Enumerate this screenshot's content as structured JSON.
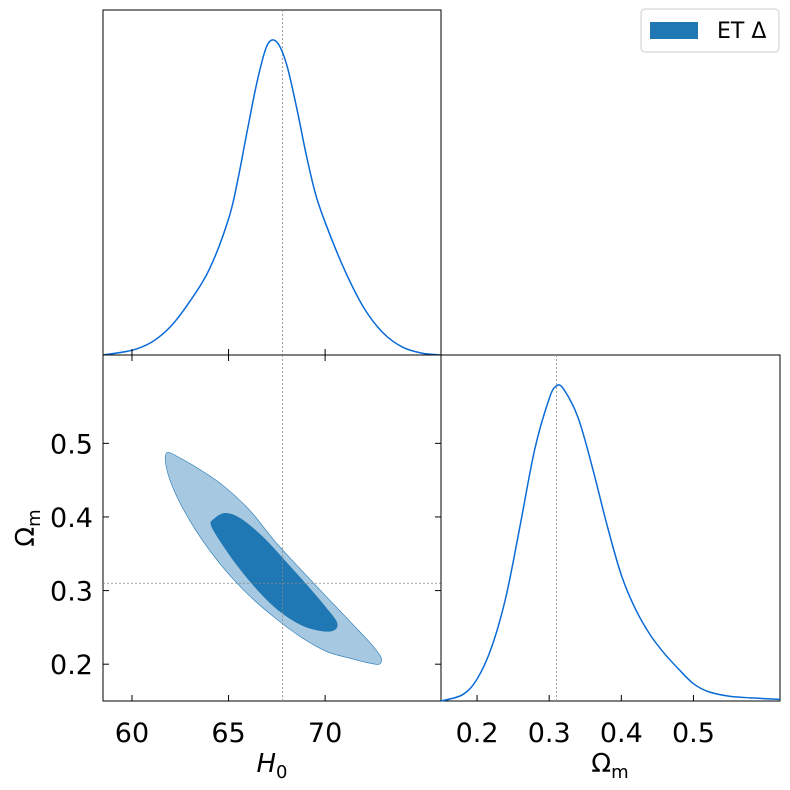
{
  "chart_data": [
    {
      "type": "line",
      "panel": "H0 marginal",
      "xlim": [
        58.5,
        76
      ],
      "x": [
        58.5,
        60,
        61,
        62,
        63,
        64,
        65,
        65.5,
        66,
        66.5,
        67,
        67.5,
        68,
        68.5,
        69,
        69.5,
        70,
        71,
        72,
        73,
        74,
        75,
        76
      ],
      "y": [
        0.0,
        0.015,
        0.04,
        0.09,
        0.17,
        0.27,
        0.43,
        0.56,
        0.72,
        0.87,
        0.98,
        0.99,
        0.92,
        0.79,
        0.64,
        0.51,
        0.42,
        0.27,
        0.15,
        0.07,
        0.025,
        0.006,
        0.0
      ],
      "reference_x": 67.8,
      "legend_label": "ET Δ"
    },
    {
      "type": "area",
      "panel": "H0 vs Omega_m contours",
      "xlabel": "H",
      "xlabel_sub": "0",
      "ylabel": "Ω",
      "ylabel_sub": "m",
      "xlim": [
        58.5,
        76
      ],
      "ylim": [
        0.15,
        0.62
      ],
      "xticks": [
        "60",
        "65",
        "70"
      ],
      "yticks": [
        "0.2",
        "0.3",
        "0.4",
        "0.5"
      ],
      "contours": [
        {
          "level": "95%",
          "color": "#a6c8e0",
          "points": [
            [
              61.8,
              0.487
            ],
            [
              62.5,
              0.48
            ],
            [
              63.6,
              0.463
            ],
            [
              64.8,
              0.441
            ],
            [
              66.1,
              0.409
            ],
            [
              67.4,
              0.367
            ],
            [
              68.8,
              0.327
            ],
            [
              70.2,
              0.288
            ],
            [
              71.4,
              0.255
            ],
            [
              72.4,
              0.227
            ],
            [
              72.9,
              0.209
            ],
            [
              72.8,
              0.2
            ],
            [
              72.2,
              0.202
            ],
            [
              71.3,
              0.208
            ],
            [
              70.1,
              0.217
            ],
            [
              68.8,
              0.236
            ],
            [
              67.4,
              0.263
            ],
            [
              66.0,
              0.295
            ],
            [
              64.6,
              0.335
            ],
            [
              63.3,
              0.382
            ],
            [
              62.3,
              0.429
            ],
            [
              61.8,
              0.465
            ]
          ]
        },
        {
          "level": "68%",
          "color": "#1f77b4",
          "points": [
            [
              64.2,
              0.396
            ],
            [
              64.8,
              0.405
            ],
            [
              65.6,
              0.398
            ],
            [
              66.8,
              0.372
            ],
            [
              68.0,
              0.338
            ],
            [
              69.2,
              0.303
            ],
            [
              70.1,
              0.275
            ],
            [
              70.6,
              0.257
            ],
            [
              70.5,
              0.247
            ],
            [
              69.9,
              0.245
            ],
            [
              68.8,
              0.253
            ],
            [
              67.6,
              0.273
            ],
            [
              66.5,
              0.301
            ],
            [
              65.4,
              0.336
            ],
            [
              64.5,
              0.37
            ],
            [
              64.1,
              0.389
            ]
          ]
        }
      ],
      "reference_x": 67.8,
      "reference_y": 0.31
    },
    {
      "type": "line",
      "panel": "Omega_m marginal",
      "xlabel": "Ω",
      "xlabel_sub": "m",
      "xlim": [
        0.15,
        0.62
      ],
      "xticks": [
        "0.2",
        "0.3",
        "0.4",
        "0.5"
      ],
      "x": [
        0.15,
        0.18,
        0.2,
        0.22,
        0.24,
        0.26,
        0.28,
        0.3,
        0.31,
        0.32,
        0.34,
        0.36,
        0.38,
        0.4,
        0.42,
        0.44,
        0.46,
        0.48,
        0.5,
        0.52,
        0.55,
        0.58,
        0.62
      ],
      "y": [
        0.0,
        0.02,
        0.07,
        0.17,
        0.33,
        0.56,
        0.8,
        0.96,
        1.0,
        0.99,
        0.9,
        0.74,
        0.56,
        0.4,
        0.29,
        0.21,
        0.15,
        0.1,
        0.055,
        0.03,
        0.015,
        0.01,
        0.005
      ],
      "reference_x": 0.31
    }
  ],
  "legend": {
    "label": "ET Δ",
    "color": "#1f77b4"
  },
  "colors": {
    "line": "#0a6bd6",
    "fill_inner": "#1f77b4",
    "fill_outer": "#a6c8e0",
    "reference": "#888888"
  }
}
